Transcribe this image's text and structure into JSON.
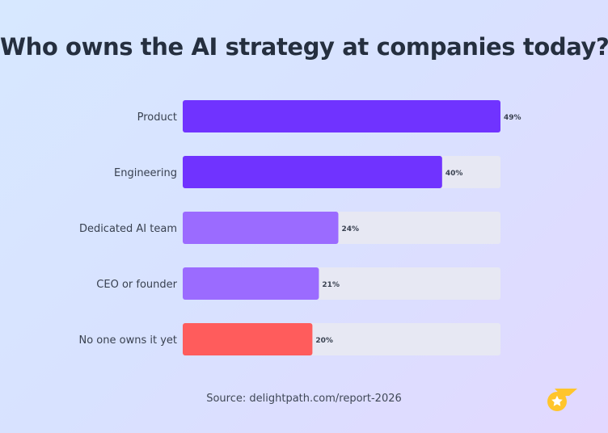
{
  "chart_data": {
    "type": "bar",
    "orientation": "horizontal",
    "title": "Who owns the AI strategy at companies today?",
    "categories": [
      "Product",
      "Engineering",
      "Dedicated AI team",
      "CEO or founder",
      "No one owns it yet"
    ],
    "values": [
      49,
      40,
      24,
      21,
      20
    ],
    "value_labels": [
      "49%",
      "40%",
      "24%",
      "21%",
      "20%"
    ],
    "bar_colors": [
      "#7033ff",
      "#7033ff",
      "#9b6bff",
      "#9b6bff",
      "#ff5c5c"
    ],
    "track_color": "#e7e8f3",
    "xlim": [
      0,
      49
    ]
  },
  "source": "Source: delightpath.com/report-2026",
  "colors": {
    "title": "#252f3f",
    "label": "#394150",
    "value_label": "#394150"
  },
  "logo": {
    "icon": "star-wing-logo-icon",
    "color": "#ffc52c"
  }
}
